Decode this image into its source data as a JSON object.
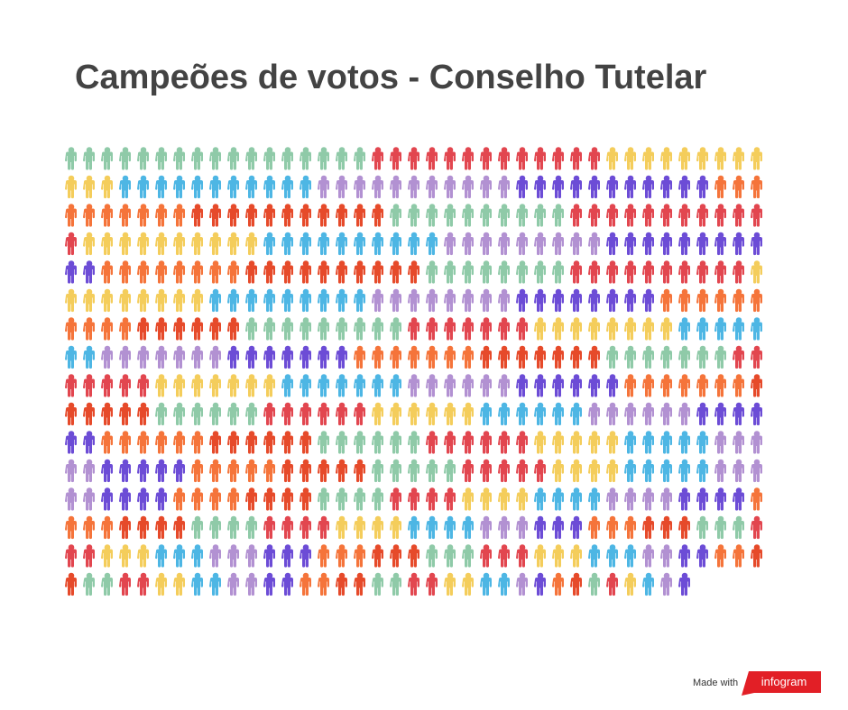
{
  "chart_data": {
    "type": "pictogram",
    "title": "Campeões de votos - Conselho Tutelar",
    "palette": [
      "#8fcaa8",
      "#e2464f",
      "#f4cd5b",
      "#4db6e4",
      "#b291d2",
      "#6c4cd6",
      "#f5743a",
      "#e64a2a"
    ],
    "columns": 39,
    "values": [
      17,
      13,
      12,
      11,
      11,
      11,
      10,
      11,
      10,
      12,
      10,
      10,
      9,
      11,
      8,
      10,
      8,
      10,
      9,
      9,
      8,
      8,
      10,
      6,
      9,
      7,
      8,
      7,
      7,
      7,
      7,
      7,
      7,
      7,
      7,
      7,
      6,
      6,
      7,
      6,
      6,
      6,
      6,
      6,
      6,
      6,
      6,
      6,
      6,
      6,
      5,
      5,
      5,
      5,
      5,
      5,
      5,
      5,
      4,
      5,
      5,
      4,
      4,
      4,
      4,
      4,
      4,
      4,
      4,
      4,
      4,
      4,
      4,
      4,
      4,
      4,
      3,
      3,
      3,
      3,
      3,
      3,
      3,
      3,
      3,
      3,
      3,
      3,
      3,
      3,
      3,
      3,
      2,
      2,
      2,
      2,
      2,
      2,
      2,
      2,
      2,
      2,
      2,
      2,
      2,
      2,
      2,
      2,
      1,
      1,
      1,
      1,
      1,
      1,
      1,
      1,
      1,
      1
    ]
  },
  "footer": {
    "made_with": "Made with",
    "brand": "infogram"
  }
}
